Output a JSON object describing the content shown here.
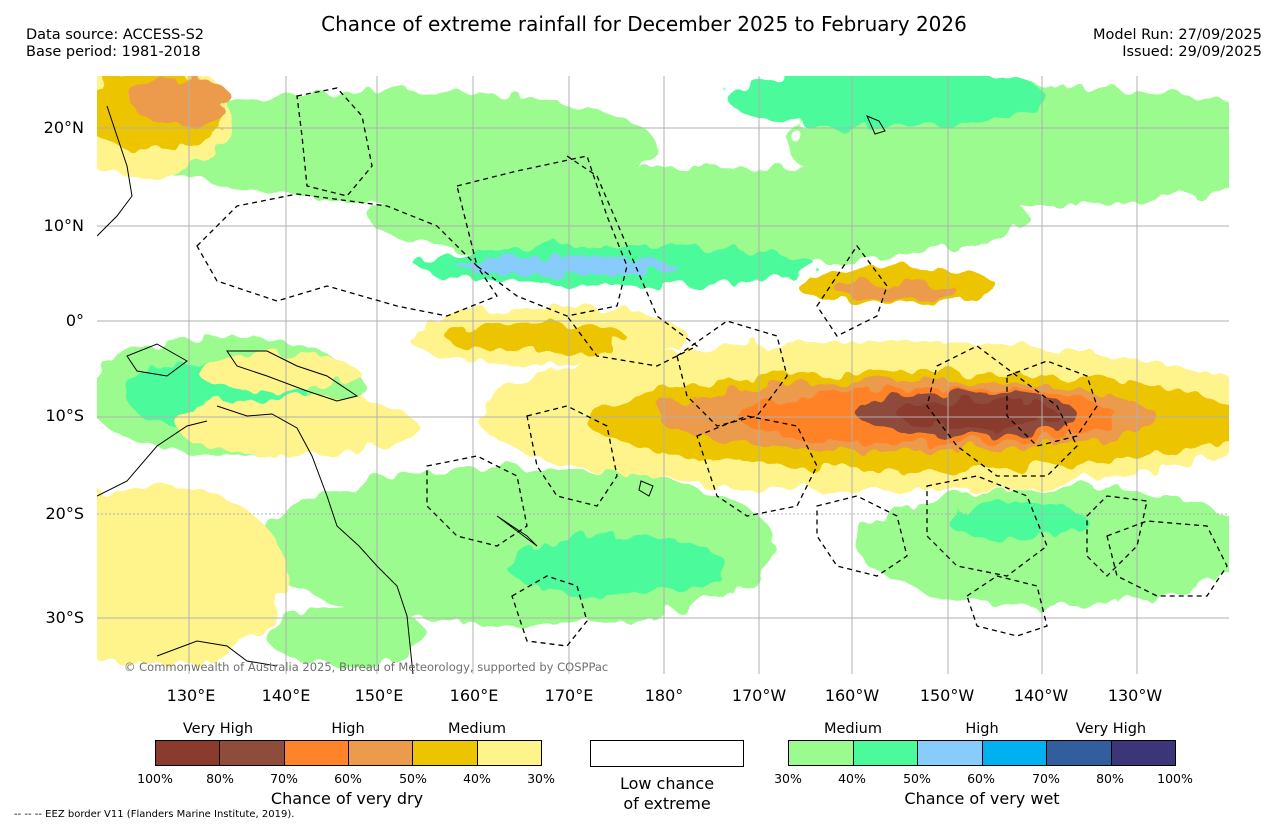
{
  "title": "Chance of extreme rainfall for December 2025 to February 2026",
  "data_source": "Data source: ACCESS-S2",
  "base_period": "Base period: 1981-2018",
  "model_run": "Model Run: 27/09/2025",
  "issued": "Issued: 29/09/2025",
  "lat_labels": [
    "20°N",
    "10°N",
    "0°",
    "10°S",
    "20°S",
    "30°S"
  ],
  "lon_labels": [
    "130°E",
    "140°E",
    "150°E",
    "160°E",
    "170°E",
    "180°",
    "170°W",
    "160°W",
    "150°W",
    "140°W",
    "130°W"
  ],
  "copyright": "© Commonwealth of Australia 2025, Bureau of Meteorology, supported by COSPPac",
  "legend": {
    "dry": {
      "headers": [
        "Very High",
        "High",
        "Medium"
      ],
      "ticks": [
        "100%",
        "80%",
        "70%",
        "60%",
        "50%",
        "40%",
        "30%"
      ],
      "caption": "Chance of very dry",
      "colors": [
        "#8b3a2e",
        "#8e4c3b",
        "#ff8328",
        "#eb9b4b",
        "#ecc402",
        "#fff38c"
      ]
    },
    "low": {
      "caption_line1": "Low chance",
      "caption_line2": "of extreme"
    },
    "wet": {
      "headers": [
        "Medium",
        "High",
        "Very High"
      ],
      "ticks": [
        "30%",
        "40%",
        "50%",
        "60%",
        "70%",
        "80%",
        "100%"
      ],
      "caption": "Chance of very wet",
      "colors": [
        "#9bfb8e",
        "#4bfb9b",
        "#88ccfb",
        "#00b0f0",
        "#315f9e",
        "#3c3578"
      ]
    }
  },
  "eez_note": "-- -- -- EEZ border V11 (Flanders Marine Institute, 2019)."
}
